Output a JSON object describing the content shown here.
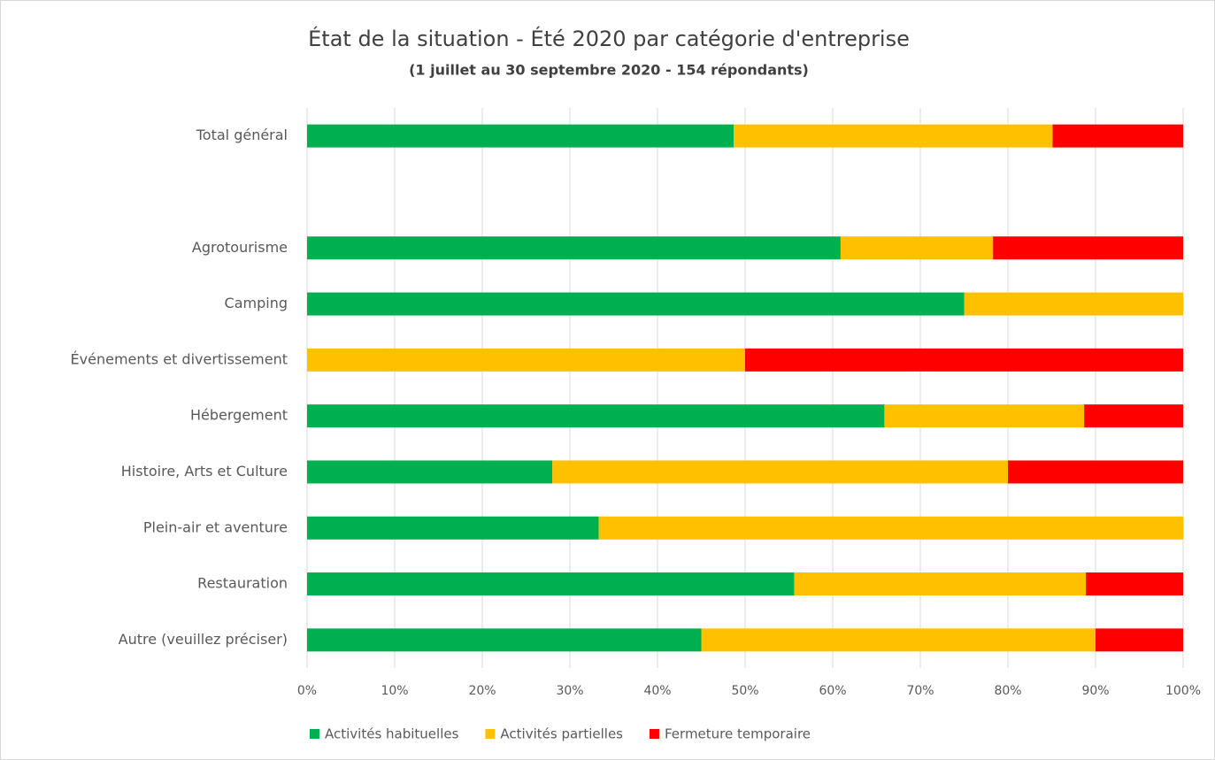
{
  "chart_data": {
    "type": "stacked-bar-horizontal",
    "title": "État de la situation - Été 2020 par catégorie d'entreprise",
    "subtitle": "(1 juillet au 30 septembre 2020 - 154 répondants)",
    "categories": [
      "Total général",
      null,
      "Agrotourisme",
      "Camping",
      "Événements et divertissement",
      "Hébergement",
      "Histoire, Arts et Culture",
      "Plein-air et aventure",
      "Restauration",
      "Autre (veuillez préciser)"
    ],
    "series": [
      {
        "name": "Activités habituelles",
        "color": "#00b050",
        "values": [
          48.7,
          null,
          60.9,
          75,
          0,
          65.9,
          28,
          33.3,
          55.6,
          45
        ]
      },
      {
        "name": "Activités partielles",
        "color": "#ffc000",
        "values": [
          36.4,
          null,
          17.4,
          25,
          50,
          22.8,
          52,
          66.7,
          33.3,
          45
        ]
      },
      {
        "name": "Fermeture temporaire",
        "color": "#ff0000",
        "values": [
          14.9,
          null,
          21.7,
          0,
          50,
          11.3,
          20,
          0,
          11.1,
          10
        ]
      }
    ],
    "xlim": [
      0,
      100
    ],
    "xticks": [
      {
        "value": 0,
        "label": "0%"
      },
      {
        "value": 10,
        "label": "10%"
      },
      {
        "value": 20,
        "label": "20%"
      },
      {
        "value": 30,
        "label": "30%"
      },
      {
        "value": 40,
        "label": "40%"
      },
      {
        "value": 50,
        "label": "50%"
      },
      {
        "value": 60,
        "label": "60%"
      },
      {
        "value": 70,
        "label": "70%"
      },
      {
        "value": 80,
        "label": "80%"
      },
      {
        "value": 90,
        "label": "90%"
      },
      {
        "value": 100,
        "label": "100%"
      }
    ],
    "grid": true,
    "legend": "bottom"
  }
}
